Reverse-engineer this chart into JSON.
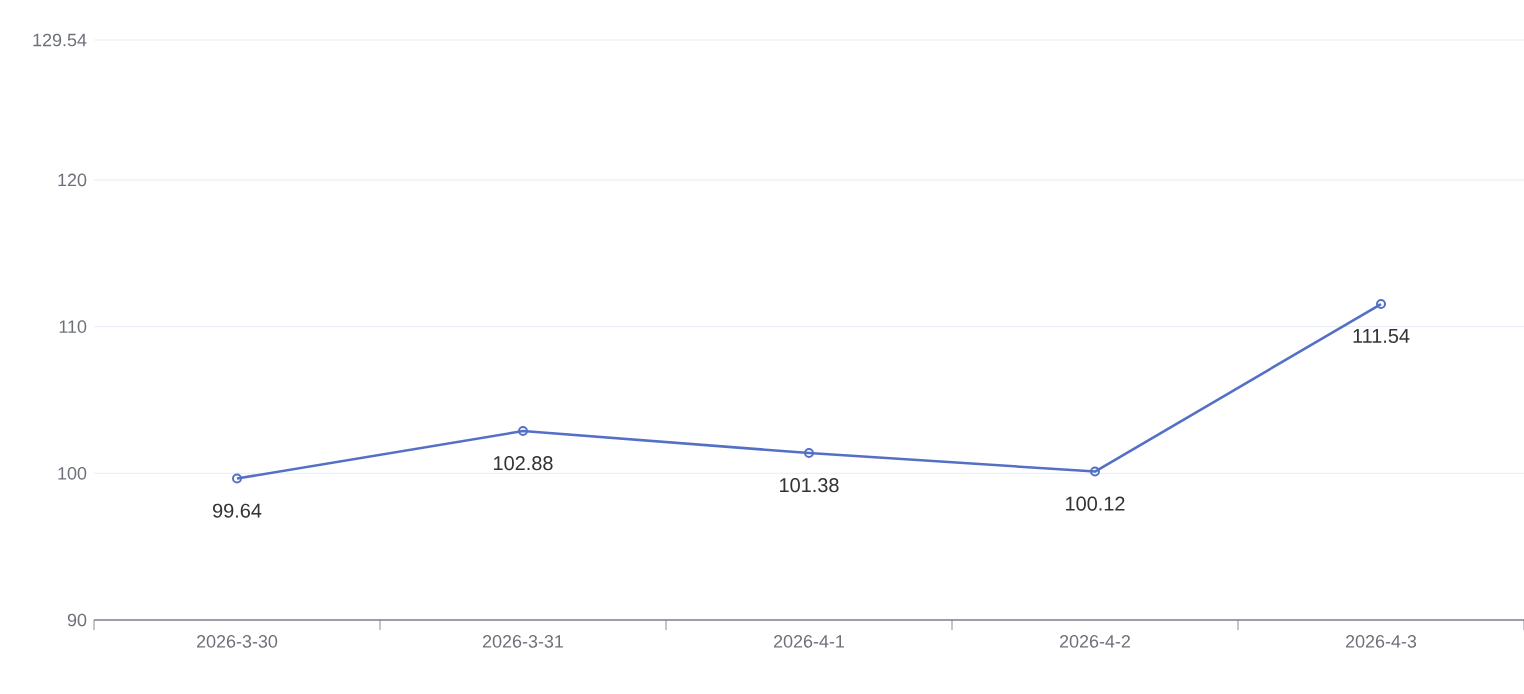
{
  "chart_data": {
    "type": "line",
    "categories": [
      "2026-3-30",
      "2026-3-31",
      "2026-4-1",
      "2026-4-2",
      "2026-4-3"
    ],
    "values": [
      99.64,
      102.88,
      101.38,
      100.12,
      111.54
    ],
    "color": "#5470c6",
    "ylim": [
      90,
      129.54
    ],
    "yticks": [
      90,
      100,
      110,
      120,
      129.54
    ],
    "grid": "y",
    "marker": "circle",
    "line_style": "solid",
    "data_labels": true
  }
}
